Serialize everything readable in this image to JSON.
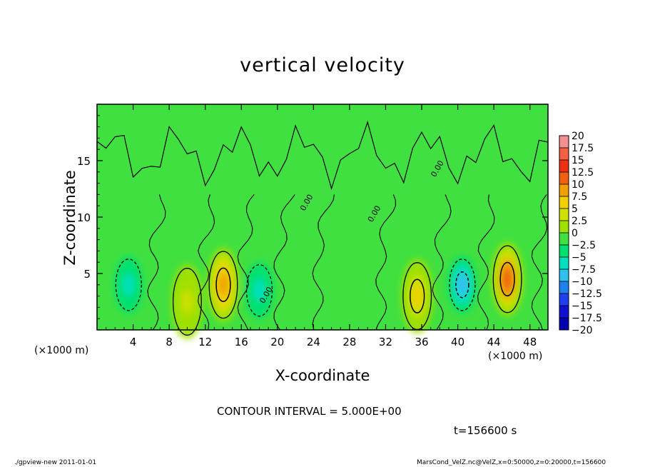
{
  "chart_data": {
    "type": "heatmap",
    "title": "vertical velocity",
    "xlabel": "X-coordinate",
    "ylabel": "Z-coordinate",
    "x_unit_label": "(×1000 m)",
    "x_ticks": [
      4,
      8,
      12,
      16,
      20,
      24,
      28,
      32,
      36,
      40,
      44,
      48
    ],
    "y_ticks": [
      5,
      10,
      15
    ],
    "xlim": [
      0,
      50
    ],
    "ylim": [
      0,
      20
    ],
    "contour_interval_text": "CONTOUR INTERVAL = 5.000E+00",
    "contour_labels": [
      "0.00",
      "0.00",
      "0.00",
      "0.00"
    ],
    "time_text": "t=156600 s",
    "colorbar": {
      "levels": [
        "20",
        "17.5",
        "15",
        "12.5",
        "10",
        "7.5",
        "5",
        "2.5",
        "0",
        "−2.5",
        "−5",
        "−7.5",
        "−10",
        "−12.5",
        "−15",
        "−17.5",
        "−20"
      ],
      "colors": [
        "#f59090",
        "#f46040",
        "#f03010",
        "#f06010",
        "#f0a000",
        "#f0d000",
        "#d0e000",
        "#a0e000",
        "#40e040",
        "#00e070",
        "#00e0c0",
        "#30c0f0",
        "#2080f0",
        "#2040f0",
        "#1010d0",
        "#0000b0",
        "#6020c0"
      ]
    },
    "features": [
      {
        "kind": "updraft",
        "x": 45.5,
        "z": 4.5,
        "peak": 12.5
      },
      {
        "kind": "updraft",
        "x": 35.5,
        "z": 3.0,
        "peak": 8
      },
      {
        "kind": "updraft",
        "x": 14.0,
        "z": 4.0,
        "peak": 9
      },
      {
        "kind": "updraft",
        "x": 10.0,
        "z": 2.5,
        "peak": 4
      },
      {
        "kind": "downdraft",
        "x": 40.5,
        "z": 4.0,
        "peak": -8
      },
      {
        "kind": "downdraft",
        "x": 18.0,
        "z": 3.5,
        "peak": -6
      },
      {
        "kind": "downdraft",
        "x": 3.5,
        "z": 4.0,
        "peak": -6
      }
    ]
  },
  "footer": {
    "left": "./gpview-new   2011-01-01",
    "right": "MarsCond_VelZ.nc@VelZ,x=0:50000,z=0:20000,t=156600"
  }
}
